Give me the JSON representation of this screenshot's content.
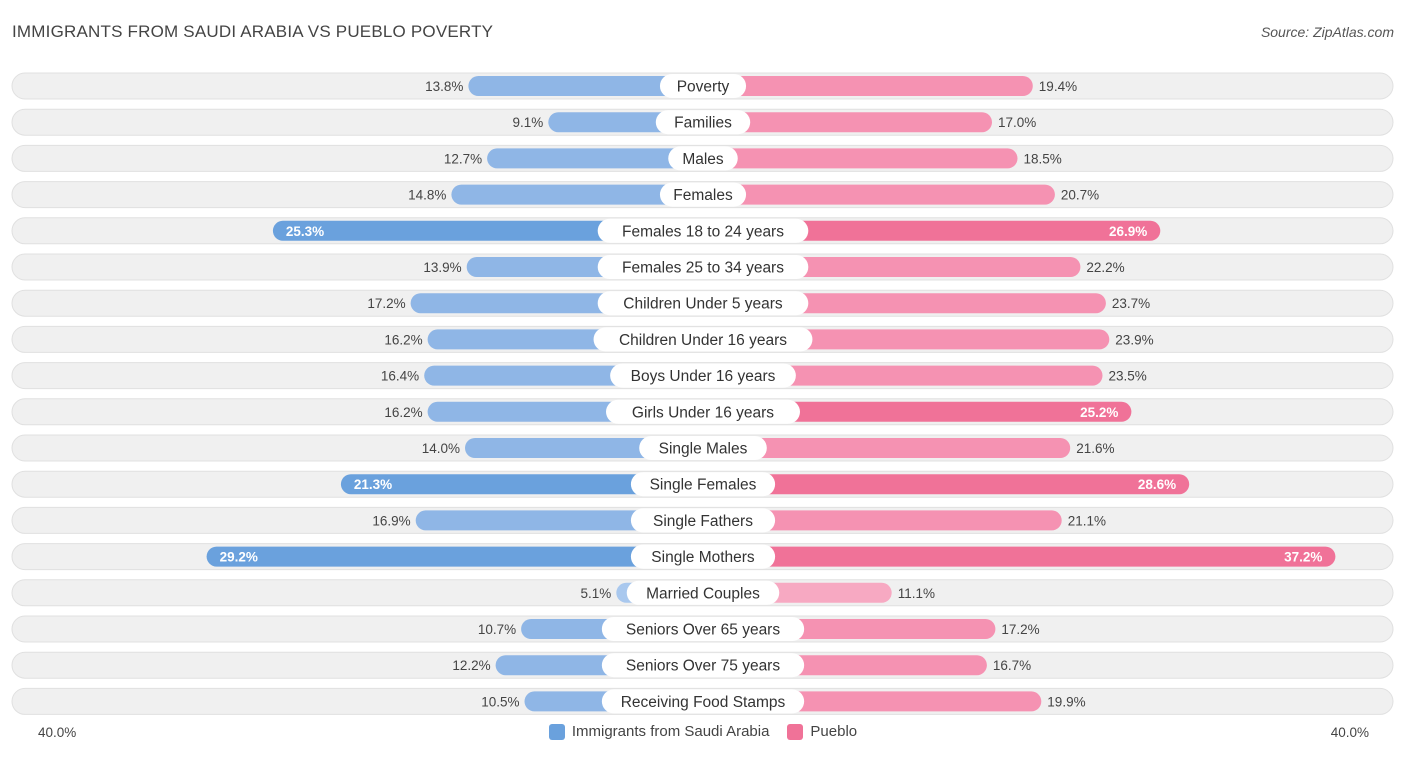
{
  "title": "IMMIGRANTS FROM SAUDI ARABIA VS PUEBLO POVERTY",
  "source": "Source: ZipAtlas.com",
  "colors": {
    "left": "#6aa1dd",
    "left_light": "#a9c8ee",
    "right": "#f07298",
    "right_light": "#f7a9c2",
    "row_bg": "#eeeeee"
  },
  "chart_data": {
    "type": "bar",
    "orientation": "horizontal-diverging",
    "title": "IMMIGRANTS FROM SAUDI ARABIA VS PUEBLO POVERTY",
    "xlim": [
      -40,
      40
    ],
    "axis_min_label": "40.0%",
    "axis_max_label": "40.0%",
    "series": [
      {
        "name": "Immigrants from Saudi Arabia",
        "side": "left"
      },
      {
        "name": "Pueblo",
        "side": "right"
      }
    ],
    "rows": [
      {
        "category": "Poverty",
        "left": 13.8,
        "left_label": "13.8%",
        "right": 19.4,
        "right_label": "19.4%"
      },
      {
        "category": "Families",
        "left": 9.1,
        "left_label": "9.1%",
        "right": 17.0,
        "right_label": "17.0%"
      },
      {
        "category": "Males",
        "left": 12.7,
        "left_label": "12.7%",
        "right": 18.5,
        "right_label": "18.5%"
      },
      {
        "category": "Females",
        "left": 14.8,
        "left_label": "14.8%",
        "right": 20.7,
        "right_label": "20.7%"
      },
      {
        "category": "Females 18 to 24 years",
        "left": 25.3,
        "left_label": "25.3%",
        "right": 26.9,
        "right_label": "26.9%"
      },
      {
        "category": "Females 25 to 34 years",
        "left": 13.9,
        "left_label": "13.9%",
        "right": 22.2,
        "right_label": "22.2%"
      },
      {
        "category": "Children Under 5 years",
        "left": 17.2,
        "left_label": "17.2%",
        "right": 23.7,
        "right_label": "23.7%"
      },
      {
        "category": "Children Under 16 years",
        "left": 16.2,
        "left_label": "16.2%",
        "right": 23.9,
        "right_label": "23.9%"
      },
      {
        "category": "Boys Under 16 years",
        "left": 16.4,
        "left_label": "16.4%",
        "right": 23.5,
        "right_label": "23.5%"
      },
      {
        "category": "Girls Under 16 years",
        "left": 16.2,
        "left_label": "16.2%",
        "right": 25.2,
        "right_label": "25.2%"
      },
      {
        "category": "Single Males",
        "left": 14.0,
        "left_label": "14.0%",
        "right": 21.6,
        "right_label": "21.6%"
      },
      {
        "category": "Single Females",
        "left": 21.3,
        "left_label": "21.3%",
        "right": 28.6,
        "right_label": "28.6%"
      },
      {
        "category": "Single Fathers",
        "left": 16.9,
        "left_label": "16.9%",
        "right": 21.1,
        "right_label": "21.1%"
      },
      {
        "category": "Single Mothers",
        "left": 29.2,
        "left_label": "29.2%",
        "right": 37.2,
        "right_label": "37.2%"
      },
      {
        "category": "Married Couples",
        "left": 5.1,
        "left_label": "5.1%",
        "right": 11.1,
        "right_label": "11.1%"
      },
      {
        "category": "Seniors Over 65 years",
        "left": 10.7,
        "left_label": "10.7%",
        "right": 17.2,
        "right_label": "17.2%"
      },
      {
        "category": "Seniors Over 75 years",
        "left": 12.2,
        "left_label": "12.2%",
        "right": 16.7,
        "right_label": "16.7%"
      },
      {
        "category": "Receiving Food Stamps",
        "left": 10.5,
        "left_label": "10.5%",
        "right": 19.9,
        "right_label": "19.9%"
      }
    ]
  }
}
